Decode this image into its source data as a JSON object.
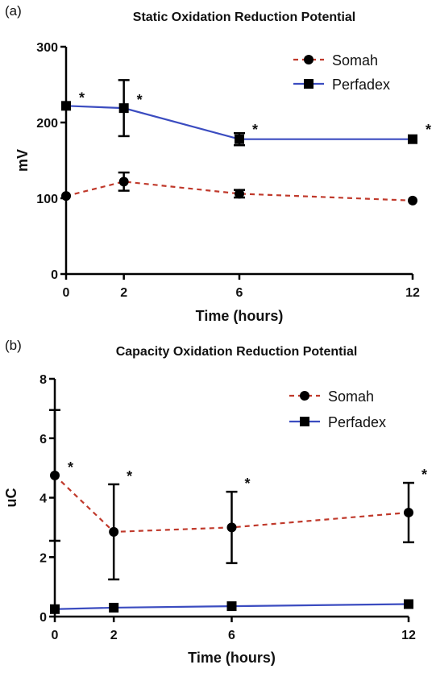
{
  "chart_data": [
    {
      "panel_label": "(a)",
      "type": "line",
      "title": "Static Oxidation Reduction Potential",
      "xlabel": "Time (hours)",
      "ylabel": "mV",
      "x": [
        0,
        2,
        6,
        12
      ],
      "x_ticks": [
        "0",
        "2",
        "6",
        "12"
      ],
      "y_ticks": [
        "0",
        "100",
        "200",
        "300"
      ],
      "xlim": [
        0,
        12
      ],
      "ylim": [
        0,
        300
      ],
      "grid": false,
      "legend_position": "top-right",
      "series": [
        {
          "name": "Somah",
          "values": [
            103,
            122,
            106,
            97
          ],
          "errors": [
            0,
            12,
            5,
            0
          ],
          "color": "#c0392b",
          "line_style": "dashed",
          "marker": "circle"
        },
        {
          "name": "Perfadex",
          "values": [
            222,
            219,
            178,
            178
          ],
          "errors": [
            0,
            37,
            8,
            0
          ],
          "color": "#3b4cc0",
          "line_style": "solid",
          "marker": "square"
        }
      ],
      "annotations": [
        {
          "x": 0,
          "y": 222,
          "text": "*"
        },
        {
          "x": 2,
          "y": 219,
          "text": "*"
        },
        {
          "x": 6,
          "y": 180,
          "text": "*"
        },
        {
          "x": 12,
          "y": 180,
          "text": "*"
        }
      ]
    },
    {
      "panel_label": "(b)",
      "type": "line",
      "title": "Capacity Oxidation  Reduction Potential",
      "xlabel": "Time (hours)",
      "ylabel": "uC",
      "x": [
        0,
        2,
        6,
        12
      ],
      "x_ticks": [
        "0",
        "2",
        "6",
        "12"
      ],
      "y_ticks": [
        "0",
        "2",
        "4",
        "6",
        "8"
      ],
      "xlim": [
        0,
        12
      ],
      "ylim": [
        0,
        8
      ],
      "grid": false,
      "legend_position": "top-right",
      "series": [
        {
          "name": "Somah",
          "values": [
            4.75,
            2.85,
            3.0,
            3.5
          ],
          "errors": [
            2.2,
            1.6,
            1.2,
            1.0
          ],
          "color": "#c0392b",
          "line_style": "dashed",
          "marker": "circle"
        },
        {
          "name": "Perfadex",
          "values": [
            0.25,
            0.3,
            0.35,
            0.42
          ],
          "errors": [
            0,
            0,
            0,
            0
          ],
          "color": "#3b4cc0",
          "line_style": "solid",
          "marker": "square"
        }
      ],
      "annotations": [
        {
          "x": 0,
          "y": 4.75,
          "text": "*"
        },
        {
          "x": 2,
          "y": 4.45,
          "text": "*"
        },
        {
          "x": 6,
          "y": 4.2,
          "text": "*"
        },
        {
          "x": 12,
          "y": 4.5,
          "text": "*"
        }
      ]
    }
  ]
}
